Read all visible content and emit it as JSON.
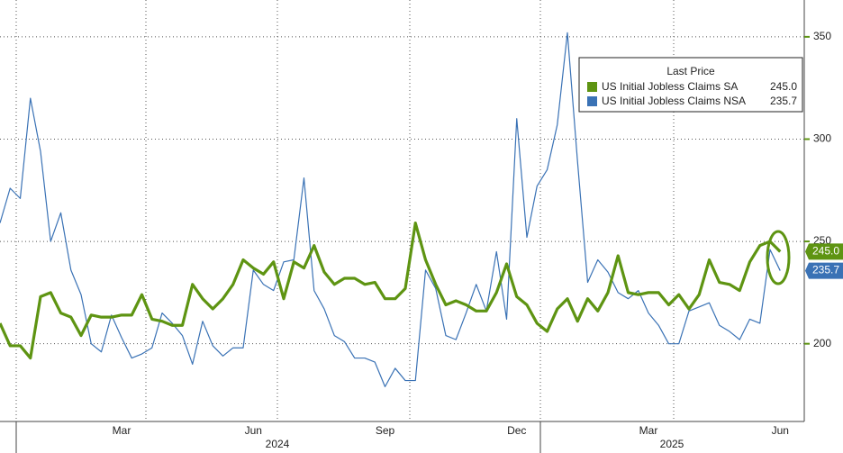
{
  "chart_data": {
    "type": "line",
    "categories": [
      null,
      null,
      null,
      null,
      null,
      null,
      null,
      null,
      null,
      null,
      null,
      null,
      "Mar",
      null,
      null,
      null,
      null,
      null,
      null,
      null,
      null,
      null,
      null,
      null,
      null,
      "Jun",
      null,
      null,
      null,
      null,
      null,
      null,
      null,
      null,
      null,
      null,
      null,
      null,
      "Sep",
      null,
      null,
      null,
      null,
      null,
      null,
      null,
      null,
      null,
      null,
      null,
      null,
      "Dec",
      null,
      null,
      null,
      null,
      null,
      null,
      null,
      null,
      null,
      null,
      null,
      null,
      "Mar",
      null,
      null,
      null,
      null,
      null,
      null,
      null,
      null,
      null,
      null,
      null,
      null,
      "Jun"
    ],
    "year_labels": [
      "2024",
      "2025"
    ],
    "legend_title": "Last Price",
    "series": [
      {
        "name": "US Initial Jobless Claims SA",
        "color": "#5e9412",
        "last_price": {
          "value": 245,
          "label": "245.0"
        },
        "values": [
          210,
          199,
          199,
          193,
          223,
          225,
          215,
          213,
          204,
          214,
          213,
          213,
          214,
          214,
          224,
          212,
          211,
          209,
          209,
          229,
          222,
          217,
          222,
          229,
          241,
          237,
          234,
          240,
          222,
          240,
          237,
          248,
          235,
          229,
          232,
          232,
          229,
          230,
          222,
          222,
          227,
          259,
          241,
          229,
          219,
          221,
          219,
          216,
          216,
          225,
          239,
          223,
          219,
          210,
          206,
          217,
          222,
          211,
          222,
          216,
          225,
          243,
          225,
          224,
          225,
          225,
          219,
          224,
          217,
          224,
          241,
          230,
          229,
          226,
          240,
          248,
          250,
          245
        ]
      },
      {
        "name": "US Initial Jobless Claims NSA",
        "color": "#3a72b5",
        "last_price": {
          "value": 235.7,
          "label": "235.7"
        },
        "values": [
          259,
          276,
          271,
          320,
          294,
          250,
          264,
          236,
          224,
          200,
          196,
          214,
          203,
          193,
          195,
          198,
          215,
          210,
          204,
          190,
          211,
          199,
          194,
          198,
          198,
          236,
          229,
          226,
          240,
          241,
          281,
          226,
          217,
          204,
          201,
          193,
          193,
          191,
          179,
          188,
          182,
          182,
          236,
          227,
          204,
          202,
          215,
          229,
          216,
          245,
          212,
          310,
          252,
          277,
          285,
          307,
          352,
          289,
          230,
          241,
          235,
          225,
          222,
          226,
          215,
          209,
          200,
          200,
          216,
          218,
          220,
          209,
          206,
          202,
          212,
          210,
          246,
          235.7
        ]
      }
    ],
    "ylim": [
      162,
      368
    ],
    "yticks": [
      200,
      250,
      300,
      350
    ],
    "grid": true
  }
}
